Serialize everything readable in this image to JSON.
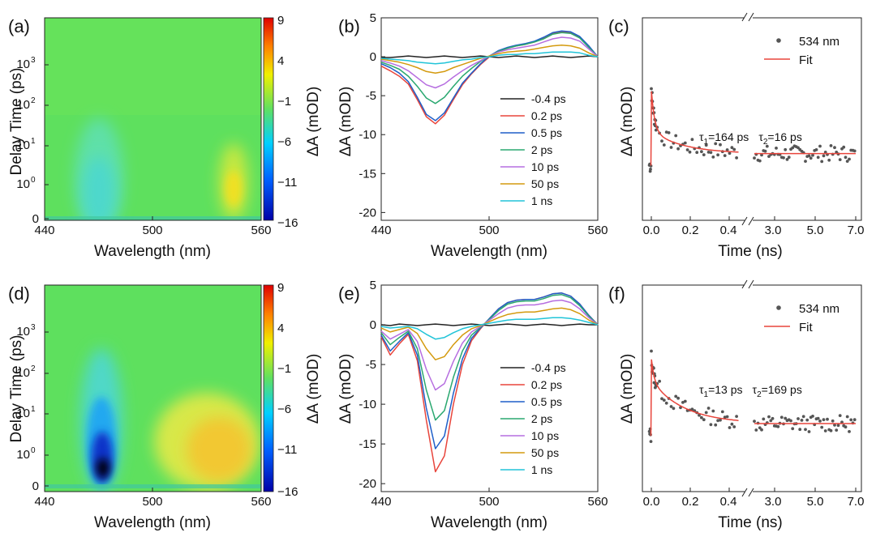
{
  "chart_data": [
    {
      "id": "a",
      "panel_label": "(a)",
      "type": "heatmap",
      "xlabel": "Wavelength (nm)",
      "ylabel": "Delay Time (ps)",
      "xticks": [
        "440",
        "500",
        "560"
      ],
      "yticks": [
        "0",
        "10^0",
        "10^1",
        "10^2",
        "10^3"
      ],
      "colorbar": {
        "label": "ΔA (mOD)",
        "ticks": [
          "9",
          "4",
          "−1",
          "−6",
          "−11",
          "−16"
        ],
        "range": [
          -16,
          9
        ]
      },
      "features": [
        {
          "center_nm": 467,
          "peak_mOD": -8.5,
          "note": "ground-state bleach"
        },
        {
          "center_nm": 545,
          "peak_mOD": 3.5,
          "note": "excited-state absorption"
        }
      ]
    },
    {
      "id": "b",
      "panel_label": "(b)",
      "type": "line",
      "xlabel": "Wavelength (nm)",
      "ylabel": "ΔA (mOD)",
      "xlim": [
        440,
        560
      ],
      "ylim": [
        -21,
        5
      ],
      "xticks": [
        "440",
        "500",
        "560"
      ],
      "yticks": [
        "5",
        "0",
        "-5",
        "-10",
        "-15",
        "-20"
      ],
      "x": [
        440,
        445,
        450,
        455,
        460,
        465,
        470,
        475,
        480,
        485,
        490,
        495,
        500,
        505,
        510,
        515,
        520,
        525,
        530,
        535,
        540,
        545,
        550,
        555,
        560
      ],
      "series": [
        {
          "name": "-0.4 ps",
          "color": "#222222",
          "values": [
            -0.1,
            -0.1,
            0,
            0.1,
            0,
            -0.1,
            0,
            0.1,
            0,
            -0.1,
            0,
            0.1,
            0,
            -0.1,
            0,
            0.1,
            0,
            -0.1,
            0,
            0.1,
            0,
            -0.1,
            0,
            0.1,
            0
          ]
        },
        {
          "name": "0.2 ps",
          "color": "#e8453c",
          "values": [
            -1.2,
            -1.8,
            -2.5,
            -3.5,
            -5.5,
            -7.7,
            -8.6,
            -7.5,
            -5.5,
            -3.6,
            -2.2,
            -1.0,
            0,
            0.7,
            1.1,
            1.4,
            1.6,
            1.9,
            2.4,
            3.0,
            3.2,
            3.1,
            2.5,
            1.3,
            0
          ]
        },
        {
          "name": "0.5 ps",
          "color": "#1f5fc9",
          "values": [
            -0.9,
            -1.4,
            -2.1,
            -3.2,
            -5.2,
            -7.4,
            -8.2,
            -7.2,
            -5.3,
            -3.4,
            -2.1,
            -0.9,
            0.1,
            0.8,
            1.2,
            1.5,
            1.7,
            2.0,
            2.5,
            3.1,
            3.3,
            3.2,
            2.6,
            1.4,
            0
          ]
        },
        {
          "name": "2 ps",
          "color": "#2aa870",
          "values": [
            -0.7,
            -1.1,
            -1.6,
            -2.5,
            -3.8,
            -5.3,
            -6.0,
            -5.2,
            -3.8,
            -2.5,
            -1.5,
            -0.6,
            0.1,
            0.7,
            1.1,
            1.4,
            1.6,
            1.9,
            2.3,
            2.9,
            3.1,
            3.0,
            2.4,
            1.2,
            0
          ]
        },
        {
          "name": "10 ps",
          "color": "#b66ee0",
          "values": [
            -0.5,
            -0.8,
            -1.2,
            -1.8,
            -2.7,
            -3.6,
            -4.0,
            -3.5,
            -2.6,
            -1.8,
            -1.1,
            -0.5,
            0.1,
            0.6,
            0.9,
            1.1,
            1.3,
            1.5,
            1.9,
            2.3,
            2.5,
            2.4,
            2.0,
            1.0,
            0
          ]
        },
        {
          "name": "50 ps",
          "color": "#d49a0e",
          "values": [
            -0.3,
            -0.5,
            -0.7,
            -1.0,
            -1.4,
            -1.9,
            -2.1,
            -1.9,
            -1.4,
            -1.0,
            -0.6,
            -0.2,
            0.1,
            0.4,
            0.6,
            0.7,
            0.8,
            1.0,
            1.2,
            1.4,
            1.5,
            1.4,
            1.1,
            0.5,
            0
          ]
        },
        {
          "name": "1 ns",
          "color": "#21c4d8",
          "values": [
            -0.2,
            -0.3,
            -0.4,
            -0.5,
            -0.7,
            -0.8,
            -0.9,
            -0.8,
            -0.6,
            -0.4,
            -0.3,
            -0.1,
            0,
            0.2,
            0.3,
            0.3,
            0.4,
            0.4,
            0.5,
            0.6,
            0.6,
            0.6,
            0.5,
            0.2,
            0
          ]
        }
      ]
    },
    {
      "id": "c",
      "panel_label": "(c)",
      "type": "scatter",
      "xlabel": "Time (ns)",
      "ylabel": "ΔA (mOD)",
      "xticks": [
        "0.0",
        "0.2",
        "0.4",
        "3.0",
        "5.0",
        "7.0"
      ],
      "axis_break": true,
      "legend": [
        "534 nm",
        "Fit"
      ],
      "annotation": {
        "tau1": "τ",
        "tau1_sub": "1",
        "tau1_val": "=164 ps",
        "tau2": "τ",
        "tau2_sub": "2",
        "tau2_val": "=16 ps"
      },
      "fit_params": {
        "tau1_ps": 164,
        "tau2_ps": 16
      }
    },
    {
      "id": "d",
      "panel_label": "(d)",
      "type": "heatmap",
      "xlabel": "Wavelength (nm)",
      "ylabel": "Delay Time (ps)",
      "xticks": [
        "440",
        "500",
        "560"
      ],
      "yticks": [
        "0",
        "10^0",
        "10^1",
        "10^2",
        "10^3"
      ],
      "colorbar": {
        "label": "ΔA (mOD)",
        "ticks": [
          "9",
          "4",
          "−1",
          "−6",
          "−11",
          "−16"
        ],
        "range": [
          -16,
          9
        ]
      },
      "features": [
        {
          "center_nm": 467,
          "peak_mOD": -18.5,
          "note": "ground-state bleach"
        },
        {
          "center_nm": 545,
          "peak_mOD": 4.0,
          "note": "excited-state absorption"
        }
      ]
    },
    {
      "id": "e",
      "panel_label": "(e)",
      "type": "line",
      "xlabel": "Wavelength (nm)",
      "ylabel": "ΔA (mOD)",
      "xlim": [
        440,
        560
      ],
      "ylim": [
        -21,
        5
      ],
      "xticks": [
        "440",
        "500",
        "560"
      ],
      "yticks": [
        "5",
        "0",
        "-5",
        "-10",
        "-15",
        "-20"
      ],
      "x": [
        440,
        445,
        450,
        455,
        460,
        465,
        470,
        475,
        480,
        485,
        490,
        495,
        500,
        505,
        510,
        515,
        520,
        525,
        530,
        535,
        540,
        545,
        550,
        555,
        560
      ],
      "series": [
        {
          "name": "-0.4 ps",
          "color": "#222222",
          "values": [
            0,
            -0.1,
            0.1,
            0,
            -0.1,
            0,
            0.1,
            0,
            -0.1,
            0,
            0.1,
            0,
            -0.1,
            0,
            0.1,
            0,
            -0.1,
            0,
            0.1,
            0,
            -0.1,
            0,
            0.1,
            0,
            0
          ]
        },
        {
          "name": "0.2 ps",
          "color": "#e8453c",
          "values": [
            -1.5,
            -3.8,
            -2.4,
            -1.2,
            -4.5,
            -12.0,
            -18.5,
            -16.5,
            -10.0,
            -5.0,
            -2.0,
            -0.5,
            0.8,
            2.0,
            2.8,
            3.1,
            3.2,
            3.2,
            3.5,
            3.9,
            4.0,
            3.6,
            2.6,
            1.2,
            0
          ]
        },
        {
          "name": "0.5 ps",
          "color": "#1f5fc9",
          "values": [
            -1.3,
            -3.3,
            -2.1,
            -1.0,
            -3.8,
            -10.5,
            -15.6,
            -14.0,
            -8.6,
            -4.3,
            -1.7,
            -0.4,
            0.8,
            2.0,
            2.8,
            3.1,
            3.2,
            3.2,
            3.5,
            3.9,
            4.0,
            3.6,
            2.6,
            1.2,
            0
          ]
        },
        {
          "name": "2 ps",
          "color": "#2aa870",
          "values": [
            -1.0,
            -2.5,
            -1.6,
            -0.8,
            -3.0,
            -8.2,
            -12.0,
            -10.8,
            -6.6,
            -3.3,
            -1.3,
            -0.3,
            0.7,
            1.8,
            2.6,
            2.9,
            3.0,
            3.0,
            3.3,
            3.7,
            3.8,
            3.4,
            2.4,
            1.1,
            0
          ]
        },
        {
          "name": "10 ps",
          "color": "#b66ee0",
          "values": [
            -0.8,
            -1.8,
            -1.2,
            -0.6,
            -2.1,
            -5.6,
            -8.2,
            -7.4,
            -4.6,
            -2.3,
            -0.9,
            -0.2,
            0.6,
            1.4,
            2.1,
            2.4,
            2.5,
            2.5,
            2.7,
            3.0,
            3.1,
            2.8,
            2.0,
            0.9,
            0
          ]
        },
        {
          "name": "50 ps",
          "color": "#d49a0e",
          "values": [
            -0.4,
            -0.9,
            -0.6,
            -0.3,
            -1.1,
            -3.0,
            -4.4,
            -4.0,
            -2.5,
            -1.3,
            -0.5,
            -0.1,
            0.4,
            0.9,
            1.3,
            1.5,
            1.6,
            1.6,
            1.8,
            2.0,
            2.1,
            1.9,
            1.4,
            0.6,
            0
          ]
        },
        {
          "name": "1 ns",
          "color": "#21c4d8",
          "values": [
            -0.2,
            -0.4,
            -0.3,
            -0.2,
            -0.5,
            -1.2,
            -1.8,
            -1.6,
            -1.0,
            -0.5,
            -0.2,
            0,
            0.2,
            0.4,
            0.6,
            0.7,
            0.7,
            0.7,
            0.8,
            0.9,
            0.9,
            0.8,
            0.6,
            0.3,
            0
          ]
        }
      ]
    },
    {
      "id": "f",
      "panel_label": "(f)",
      "type": "scatter",
      "xlabel": "Time (ns)",
      "ylabel": "ΔA (mOD)",
      "xticks": [
        "0.0",
        "0.2",
        "0.4",
        "3.0",
        "5.0",
        "7.0"
      ],
      "axis_break": true,
      "legend": [
        "534 nm",
        "Fit"
      ],
      "annotation": {
        "tau1": "τ",
        "tau1_sub": "1",
        "tau1_val": "=13 ps",
        "tau2": "τ",
        "tau2_sub": "2",
        "tau2_val": "=169 ps"
      },
      "fit_params": {
        "tau1_ps": 13,
        "tau2_ps": 169
      }
    }
  ]
}
